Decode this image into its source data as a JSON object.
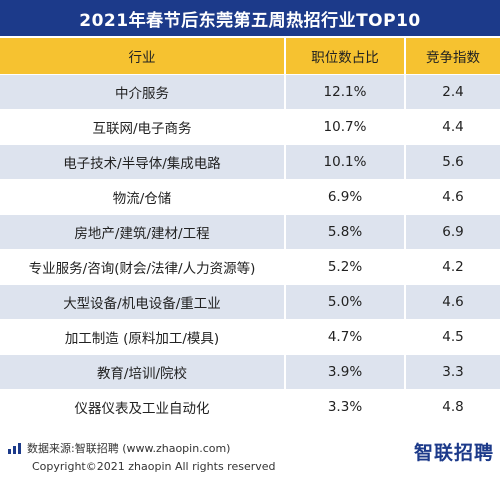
{
  "title": "2021年春节后东莞第五周热招行业TOP10",
  "table": {
    "headers": [
      "行业",
      "职位数占比",
      "竞争指数"
    ],
    "rows": [
      [
        "中介服务",
        "12.1%",
        "2.4"
      ],
      [
        "互联网/电子商务",
        "10.7%",
        "4.4"
      ],
      [
        "电子技术/半导体/集成电路",
        "10.1%",
        "5.6"
      ],
      [
        "物流/仓储",
        "6.9%",
        "4.6"
      ],
      [
        "房地产/建筑/建材/工程",
        "5.8%",
        "6.9"
      ],
      [
        "专业服务/咨询(财会/法律/人力资源等)",
        "5.2%",
        "4.2"
      ],
      [
        "大型设备/机电设备/重工业",
        "5.0%",
        "4.6"
      ],
      [
        "加工制造 (原料加工/模具)",
        "4.7%",
        "4.5"
      ],
      [
        "教育/培训/院校",
        "3.9%",
        "3.3"
      ],
      [
        "仪器仪表及工业自动化",
        "3.3%",
        "4.8"
      ]
    ]
  },
  "footer": {
    "source": "数据来源:智联招聘 (www.zhaopin.com)",
    "copyright": "Copyright©2021 zhaopin All rights reserved",
    "logo": "智联招聘"
  },
  "colors": {
    "title_bg": "#1c3a8a",
    "header_bg": "#f6c230",
    "stripe_bg": "#dde3ee",
    "brand": "#1c3a8a"
  }
}
